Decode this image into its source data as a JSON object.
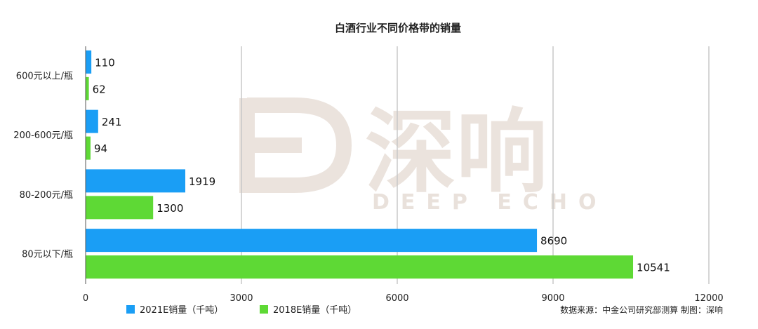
{
  "watermark": {
    "brand_cn": "深响",
    "brand_en": "DEEP ECHO"
  },
  "chart_data": {
    "type": "bar",
    "orientation": "horizontal",
    "title": "白酒行业不同价格带的销量",
    "categories": [
      "600元以上/瓶",
      "200-600元/瓶",
      "80-200元/瓶",
      "80元以下/瓶"
    ],
    "series": [
      {
        "name": "2021E销量（千吨）",
        "values": [
          110,
          241,
          1919,
          8690
        ],
        "color": "#1a9ef5"
      },
      {
        "name": "2018E销量（千吨）",
        "values": [
          62,
          94,
          1300,
          10541
        ],
        "color": "#5ed935"
      }
    ],
    "xlim": [
      0,
      12000
    ],
    "xticks": [
      0,
      3000,
      6000,
      9000,
      12000
    ],
    "grid": true,
    "legend_position": "bottom-left",
    "source": "数据来源：中金公司研究部测算 制图：深响"
  }
}
